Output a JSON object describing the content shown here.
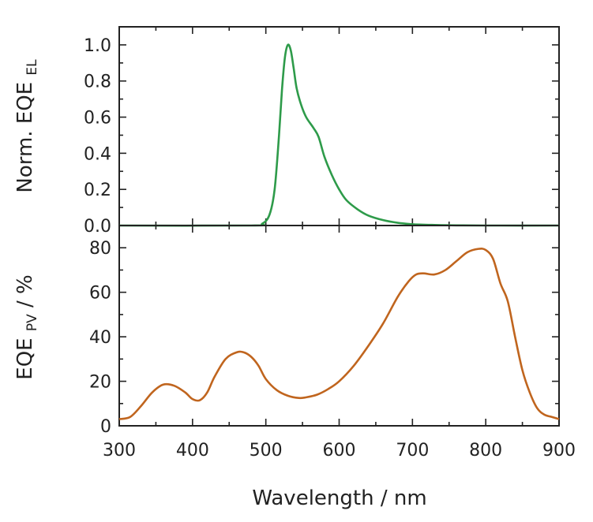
{
  "chart_data": [
    {
      "type": "line",
      "panel": "top",
      "ylabel": "Norm. EQE",
      "ylabel_sub": "EL",
      "xlim": [
        300,
        900
      ],
      "ylim": [
        0,
        1.1
      ],
      "yticks": [
        "0.0",
        "0.2",
        "0.4",
        "0.6",
        "0.8",
        "1.0"
      ],
      "grid": false,
      "series": [
        {
          "color": "#2e9b4a",
          "x": [
            300,
            480,
            495,
            505,
            512,
            518,
            522,
            526,
            530,
            534,
            538,
            542,
            548,
            555,
            565,
            572,
            580,
            590,
            600,
            610,
            625,
            640,
            660,
            680,
            700,
            730,
            760,
            800,
            900
          ],
          "y": [
            0,
            0,
            0.01,
            0.06,
            0.2,
            0.5,
            0.75,
            0.93,
            1.0,
            0.97,
            0.87,
            0.76,
            0.67,
            0.6,
            0.54,
            0.49,
            0.38,
            0.28,
            0.2,
            0.14,
            0.09,
            0.055,
            0.03,
            0.015,
            0.007,
            0.003,
            0.001,
            0,
            0
          ]
        }
      ]
    },
    {
      "type": "line",
      "panel": "bottom",
      "ylabel": "EQE",
      "ylabel_sub": "PV",
      "ylabel_suffix": " / %",
      "xlabel": "Wavelength / nm",
      "xlim": [
        300,
        900
      ],
      "ylim": [
        0,
        90
      ],
      "xticks": [
        "300",
        "400",
        "500",
        "600",
        "700",
        "800",
        "900"
      ],
      "yticks": [
        "0",
        "20",
        "40",
        "60",
        "80"
      ],
      "grid": false,
      "series": [
        {
          "color": "#c0651e",
          "x": [
            300,
            315,
            330,
            345,
            360,
            375,
            390,
            400,
            410,
            420,
            430,
            445,
            460,
            470,
            480,
            490,
            500,
            515,
            530,
            545,
            555,
            570,
            585,
            600,
            620,
            640,
            660,
            680,
            695,
            705,
            715,
            730,
            745,
            760,
            775,
            790,
            800,
            810,
            820,
            830,
            840,
            850,
            860,
            870,
            880,
            890,
            900
          ],
          "y": [
            3,
            4,
            9,
            15,
            18.5,
            18,
            15,
            12,
            11.5,
            15,
            22,
            30,
            33,
            33,
            31,
            27,
            21,
            16,
            13.5,
            12.5,
            12.8,
            14,
            16.5,
            20,
            27,
            36,
            46,
            58,
            65,
            68,
            68.5,
            68,
            70,
            74,
            78,
            79.5,
            79,
            75,
            64,
            56,
            40,
            25,
            15,
            8,
            5,
            4,
            3
          ]
        }
      ]
    }
  ]
}
